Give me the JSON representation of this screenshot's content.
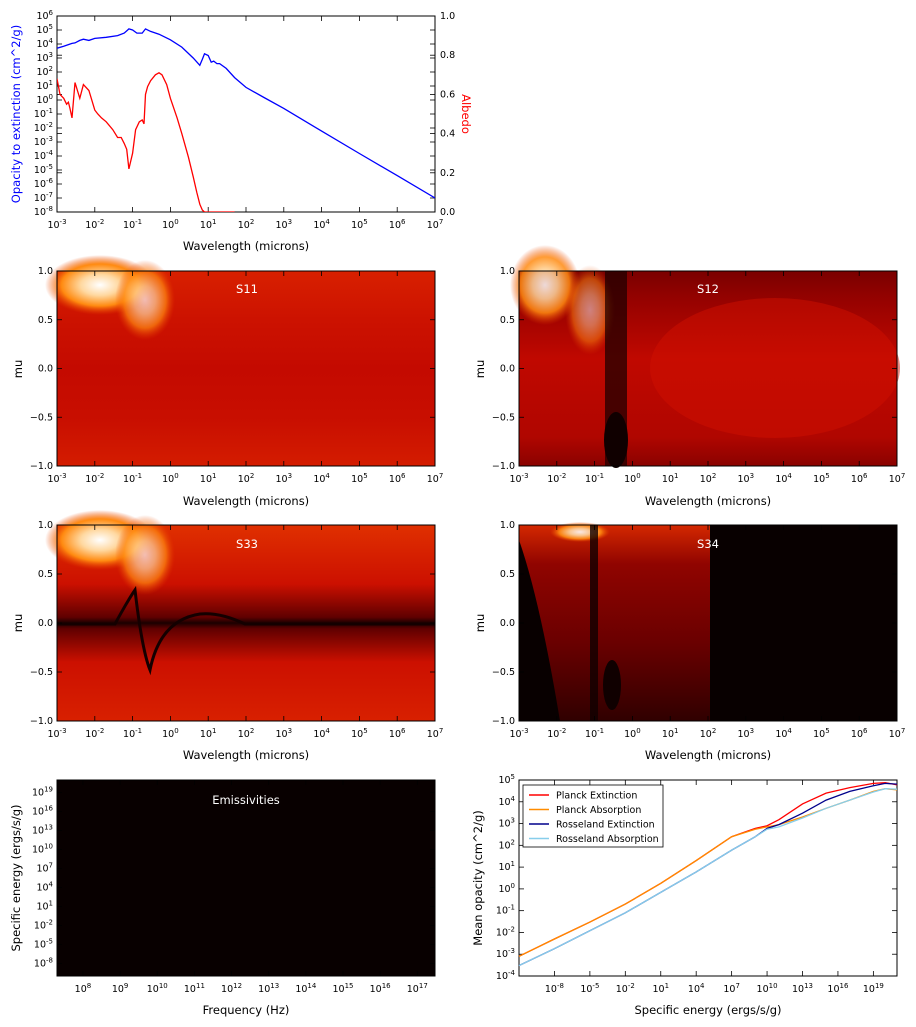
{
  "chart_data": [
    {
      "type": "line",
      "xlabel": "Wavelength (microns)",
      "ylabel": "Opacity to extinction (cm^2/g)",
      "ylabel_right": "Albedo",
      "xscale": "log",
      "xlim": [
        0.001,
        10000000.0
      ],
      "yscale": "log",
      "ylim": [
        1e-08,
        1000000.0
      ],
      "ylim_right": [
        0,
        1
      ],
      "colors": {
        "opacity": "#0000ff",
        "albedo": "#ff0000"
      },
      "series": [
        {
          "axis": "left",
          "x": [
            0.001,
            0.0015,
            0.002,
            0.0025,
            0.003,
            0.004,
            0.005,
            0.007,
            0.01,
            0.02,
            0.04,
            0.06,
            0.08,
            0.1,
            0.13,
            0.18,
            0.22,
            0.3,
            0.5,
            1,
            2,
            4,
            6,
            7,
            8,
            10,
            12,
            14,
            17,
            20,
            30,
            50,
            100,
            300,
            1000,
            10000,
            100000,
            1000000,
            10000000
          ],
          "y": [
            5000,
            7000,
            9000,
            11000,
            12000,
            18000,
            22000,
            18000,
            25000,
            30000,
            40000,
            60000,
            120000,
            100000,
            60000,
            60000,
            120000,
            80000,
            50000,
            20000,
            6000,
            1000,
            300,
            800,
            2000,
            1500,
            500,
            600,
            400,
            400,
            180,
            40,
            8,
            1.5,
            0.25,
            0.006,
            0.00015,
            4e-06,
            1e-07
          ]
        },
        {
          "axis": "right",
          "x": [
            0.001,
            0.0012,
            0.0015,
            0.0018,
            0.002,
            0.0022,
            0.0025,
            0.003,
            0.004,
            0.005,
            0.007,
            0.01,
            0.012,
            0.015,
            0.02,
            0.03,
            0.04,
            0.05,
            0.06,
            0.07,
            0.08,
            0.1,
            0.12,
            0.15,
            0.18,
            0.2,
            0.22,
            0.25,
            0.3,
            0.4,
            0.5,
            0.6,
            0.8,
            1,
            1.5,
            2,
            3,
            4,
            5,
            6,
            7,
            8,
            10,
            20,
            50
          ],
          "y": [
            0.68,
            0.6,
            0.58,
            0.55,
            0.56,
            0.53,
            0.48,
            0.66,
            0.58,
            0.65,
            0.62,
            0.52,
            0.5,
            0.48,
            0.46,
            0.42,
            0.38,
            0.38,
            0.35,
            0.32,
            0.22,
            0.3,
            0.42,
            0.46,
            0.47,
            0.45,
            0.6,
            0.64,
            0.67,
            0.7,
            0.71,
            0.7,
            0.65,
            0.58,
            0.48,
            0.4,
            0.28,
            0.18,
            0.1,
            0.04,
            0.01,
            0,
            0,
            0,
            0
          ]
        }
      ]
    },
    {
      "type": "heatmap",
      "title": "S11",
      "xlabel": "Wavelength (microns)",
      "ylabel": "mu",
      "xscale": "log",
      "xlim": [
        0.001,
        10000000.0
      ],
      "ylim": [
        -1,
        1
      ]
    },
    {
      "type": "heatmap",
      "title": "S12",
      "xlabel": "Wavelength (microns)",
      "ylabel": "mu",
      "xscale": "log",
      "xlim": [
        0.001,
        10000000.0
      ],
      "ylim": [
        -1,
        1
      ]
    },
    {
      "type": "heatmap",
      "title": "S33",
      "xlabel": "Wavelength (microns)",
      "ylabel": "mu",
      "xscale": "log",
      "xlim": [
        0.001,
        10000000.0
      ],
      "ylim": [
        -1,
        1
      ]
    },
    {
      "type": "heatmap",
      "title": "S34",
      "xlabel": "Wavelength (microns)",
      "ylabel": "mu",
      "xscale": "log",
      "xlim": [
        0.001,
        10000000.0
      ],
      "ylim": [
        -1,
        1
      ]
    },
    {
      "type": "heatmap",
      "title": "Emissivities",
      "xlabel": "Frequency (Hz)",
      "ylabel": "Specific energy (ergs/s/g)",
      "xscale": "log",
      "xlim": [
        20000000.0,
        3e+17
      ],
      "yscale": "log",
      "ylim": [
        1e-10,
        1e+21
      ]
    },
    {
      "type": "line",
      "xlabel": "Specific energy (ergs/s/g)",
      "ylabel": "Mean opacity (cm^2/g)",
      "xscale": "log",
      "xlim": [
        1e-11,
        1e+21
      ],
      "yscale": "log",
      "ylim": [
        0.0001,
        100000.0
      ],
      "legend": "top-left",
      "series": [
        {
          "name": "Planck Extinction",
          "color": "#ff0000",
          "x": [
            1e-11,
            1e-08,
            1e-05,
            0.01,
            10.0,
            10000.0,
            10000000.0,
            1000000000.0,
            10000000000.0,
            100000000000.0,
            10000000000000.0,
            1000000000000000.0,
            1e+17,
            1e+19,
            1e+20,
            1e+21
          ],
          "y": [
            0.0008,
            0.005,
            0.03,
            0.2,
            1.8,
            20,
            250,
            600,
            800,
            1500,
            8000,
            25000,
            45000,
            70000,
            75000,
            60000
          ]
        },
        {
          "name": "Planck Absorption",
          "color": "#ff8c00",
          "x": [
            1e-11,
            1e-08,
            1e-05,
            0.01,
            10.0,
            10000.0,
            10000000.0,
            1000000000.0,
            10000000000.0,
            100000000000.0,
            10000000000000.0,
            1000000000000000.0,
            1e+17,
            1e+19,
            1e+20,
            1e+21
          ],
          "y": [
            0.0008,
            0.005,
            0.03,
            0.2,
            1.8,
            20,
            250,
            550,
            700,
            900,
            2000,
            5000,
            12000,
            30000,
            40000,
            35000
          ]
        },
        {
          "name": "Rosseland Extinction",
          "color": "#00008b",
          "x": [
            1e-11,
            1e-08,
            1e-05,
            0.01,
            10.0,
            10000.0,
            10000000.0,
            1000000000.0,
            10000000000.0,
            100000000000.0,
            10000000000000.0,
            1000000000000000.0,
            1e+17,
            1e+19,
            1e+20,
            1e+21
          ],
          "y": [
            0.0003,
            0.0018,
            0.012,
            0.08,
            0.7,
            6,
            60,
            250,
            600,
            900,
            3000,
            12000,
            30000,
            55000,
            70000,
            65000
          ]
        },
        {
          "name": "Rosseland Absorption",
          "color": "#87ceeb",
          "x": [
            1e-11,
            1e-08,
            1e-05,
            0.01,
            10.0,
            10000.0,
            10000000.0,
            1000000000.0,
            10000000000.0,
            100000000000.0,
            10000000000000.0,
            1000000000000000.0,
            1e+17,
            1e+19,
            1e+20,
            1e+21
          ],
          "y": [
            0.0003,
            0.0018,
            0.012,
            0.08,
            0.7,
            6,
            60,
            250,
            550,
            700,
            1800,
            5000,
            12000,
            28000,
            40000,
            38000
          ]
        }
      ]
    }
  ]
}
